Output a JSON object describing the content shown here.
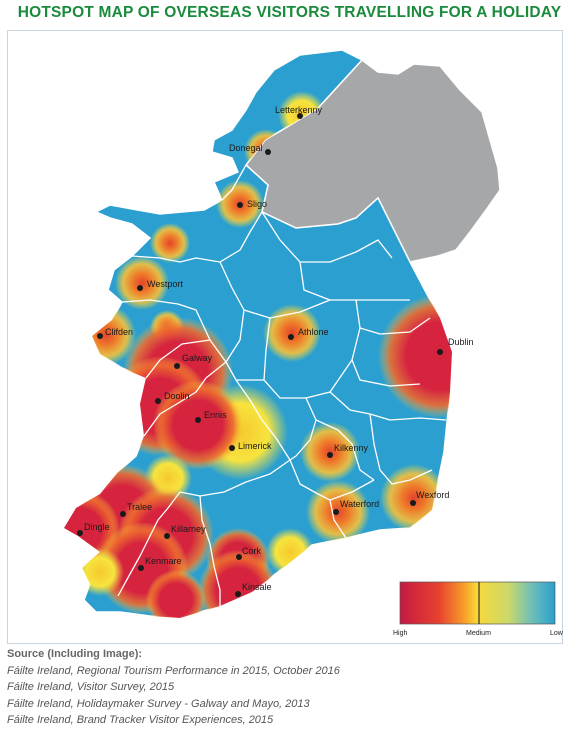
{
  "title": "HOTSPOT MAP OF OVERSEAS VISITORS TRAVELLING FOR A HOLIDAY",
  "colors": {
    "title": "#1a8a3c",
    "low": "#2b9fd0",
    "medium": "#f5e03a",
    "high": "#d6243f",
    "northern_ireland": "#a6a7a9",
    "county_border": "#ffffff"
  },
  "places": [
    {
      "name": "Letterkenny",
      "level": "medium"
    },
    {
      "name": "Donegal",
      "level": "medium-high"
    },
    {
      "name": "Sligo",
      "level": "medium-high"
    },
    {
      "name": "Westport",
      "level": "medium-high"
    },
    {
      "name": "Clifden",
      "level": "medium-high"
    },
    {
      "name": "Athlone",
      "level": "medium-high"
    },
    {
      "name": "Dublin",
      "level": "high"
    },
    {
      "name": "Galway",
      "level": "high"
    },
    {
      "name": "Doolin",
      "level": "high"
    },
    {
      "name": "Ennis",
      "level": "high"
    },
    {
      "name": "Limerick",
      "level": "medium"
    },
    {
      "name": "Kilkenny",
      "level": "medium-high"
    },
    {
      "name": "Wexford",
      "level": "medium-high"
    },
    {
      "name": "Waterford",
      "level": "medium-high"
    },
    {
      "name": "Tralee",
      "level": "high"
    },
    {
      "name": "Dingle",
      "level": "high"
    },
    {
      "name": "Killarney",
      "level": "high"
    },
    {
      "name": "Kenmare",
      "level": "high"
    },
    {
      "name": "Cork",
      "level": "high"
    },
    {
      "name": "Kinsale",
      "level": "high"
    }
  ],
  "legend": {
    "high": "High",
    "medium": "Medium",
    "low": "Low"
  },
  "sources": {
    "heading": "Source (Including Image):",
    "lines": [
      "Fáilte Ireland, Regional Tourism Performance in 2015, October 2016",
      "Fáilte Ireland, Visitor Survey, 2015",
      "Fáilte Ireland, Holidaymaker Survey  - Galway and Mayo, 2013",
      "Fáilte Ireland, Brand Tracker Visitor Experiences, 2015"
    ]
  }
}
